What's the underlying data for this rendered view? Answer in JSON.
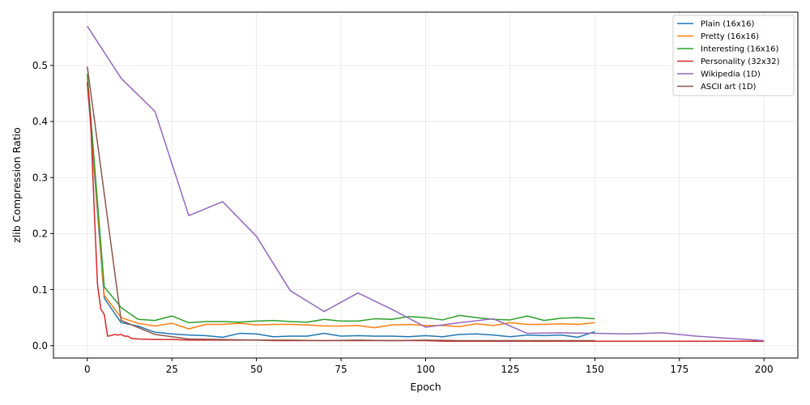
{
  "chart_data": {
    "type": "line",
    "xlabel": "Epoch",
    "ylabel": "zlib Compression Ratio",
    "xlim": [
      -10,
      210
    ],
    "ylim": [
      -0.022,
      0.595
    ],
    "xticks": [
      0,
      25,
      50,
      75,
      100,
      125,
      150,
      175,
      200
    ],
    "yticks": [
      0.0,
      0.1,
      0.2,
      0.3,
      0.4,
      0.5
    ],
    "ytick_labels": [
      "0.0",
      "0.1",
      "0.2",
      "0.3",
      "0.4",
      "0.5"
    ],
    "grid": true,
    "legend_position": "top-right",
    "series": [
      {
        "name": "Plain (16x16)",
        "color": "#1f77b4",
        "x": [
          0,
          5,
          10,
          15,
          20,
          25,
          30,
          35,
          40,
          45,
          50,
          55,
          60,
          65,
          70,
          75,
          80,
          85,
          90,
          95,
          100,
          105,
          110,
          115,
          120,
          125,
          130,
          135,
          140,
          145,
          150
        ],
        "y": [
          0.47,
          0.085,
          0.041,
          0.035,
          0.024,
          0.021,
          0.019,
          0.018,
          0.015,
          0.022,
          0.021,
          0.016,
          0.017,
          0.017,
          0.022,
          0.017,
          0.018,
          0.017,
          0.017,
          0.016,
          0.018,
          0.016,
          0.02,
          0.021,
          0.019,
          0.016,
          0.019,
          0.018,
          0.019,
          0.015,
          0.025
        ]
      },
      {
        "name": "Pretty (16x16)",
        "color": "#ff7f0e",
        "x": [
          0,
          5,
          10,
          15,
          20,
          25,
          30,
          35,
          40,
          45,
          50,
          55,
          60,
          65,
          70,
          75,
          80,
          85,
          90,
          95,
          100,
          105,
          110,
          115,
          120,
          125,
          130,
          135,
          140,
          145,
          150
        ],
        "y": [
          0.48,
          0.09,
          0.05,
          0.04,
          0.035,
          0.04,
          0.03,
          0.038,
          0.038,
          0.04,
          0.037,
          0.038,
          0.038,
          0.037,
          0.035,
          0.035,
          0.036,
          0.032,
          0.037,
          0.038,
          0.036,
          0.036,
          0.034,
          0.039,
          0.036,
          0.041,
          0.038,
          0.038,
          0.039,
          0.038,
          0.041
        ]
      },
      {
        "name": "Interesting (16x16)",
        "color": "#2ca02c",
        "x": [
          0,
          5,
          10,
          15,
          20,
          25,
          30,
          35,
          40,
          45,
          50,
          55,
          60,
          65,
          70,
          75,
          80,
          85,
          90,
          95,
          100,
          105,
          110,
          115,
          120,
          125,
          130,
          135,
          140,
          145,
          150
        ],
        "y": [
          0.485,
          0.105,
          0.068,
          0.047,
          0.045,
          0.053,
          0.041,
          0.043,
          0.043,
          0.042,
          0.044,
          0.045,
          0.043,
          0.042,
          0.047,
          0.044,
          0.044,
          0.048,
          0.047,
          0.052,
          0.05,
          0.046,
          0.054,
          0.05,
          0.047,
          0.046,
          0.053,
          0.045,
          0.049,
          0.05,
          0.048
        ]
      },
      {
        "name": "Personality (32x32)",
        "color": "#d62728",
        "x": [
          0,
          1,
          2,
          3,
          4,
          5,
          6,
          7,
          8,
          9,
          10,
          11,
          12,
          13,
          15,
          20,
          25,
          30,
          35,
          40,
          45,
          50,
          55,
          60,
          65,
          70,
          75,
          80,
          85,
          90,
          95,
          100,
          105,
          110,
          115,
          120,
          125,
          130,
          135,
          140,
          145,
          150,
          155,
          160,
          165,
          170,
          175,
          180,
          185,
          190,
          195,
          200
        ],
        "y": [
          0.47,
          0.4,
          0.25,
          0.11,
          0.065,
          0.056,
          0.017,
          0.018,
          0.02,
          0.019,
          0.02,
          0.017,
          0.017,
          0.013,
          0.012,
          0.011,
          0.011,
          0.01,
          0.01,
          0.01,
          0.01,
          0.01,
          0.009,
          0.009,
          0.009,
          0.009,
          0.009,
          0.009,
          0.009,
          0.009,
          0.009,
          0.009,
          0.008,
          0.008,
          0.008,
          0.008,
          0.008,
          0.008,
          0.008,
          0.008,
          0.008,
          0.008,
          0.008,
          0.008,
          0.008,
          0.008,
          0.008,
          0.008,
          0.008,
          0.008,
          0.008,
          0.008
        ]
      },
      {
        "name": "Wikipedia (1D)",
        "color": "#9467bd",
        "x": [
          0,
          10,
          20,
          30,
          40,
          50,
          60,
          70,
          80,
          90,
          100,
          110,
          120,
          130,
          140,
          150,
          160,
          170,
          180,
          190,
          200
        ],
        "y": [
          0.57,
          0.477,
          0.418,
          0.232,
          0.257,
          0.195,
          0.098,
          0.061,
          0.094,
          0.065,
          0.033,
          0.041,
          0.048,
          0.022,
          0.023,
          0.022,
          0.021,
          0.023,
          0.017,
          0.013,
          0.009
        ]
      },
      {
        "name": "ASCII art (1D)",
        "color": "#8c564b",
        "x": [
          0,
          10,
          20,
          30,
          40,
          50,
          60,
          70,
          80,
          90,
          100,
          110,
          120,
          130,
          140,
          150
        ],
        "y": [
          0.498,
          0.045,
          0.02,
          0.012,
          0.011,
          0.01,
          0.01,
          0.009,
          0.01,
          0.009,
          0.01,
          0.009,
          0.009,
          0.009,
          0.009,
          0.009
        ]
      }
    ]
  }
}
